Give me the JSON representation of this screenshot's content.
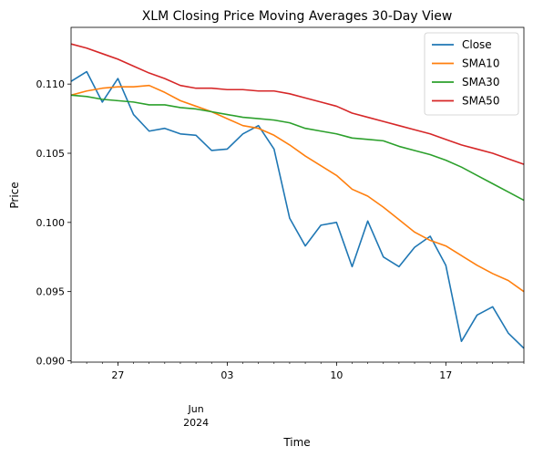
{
  "chart_data": {
    "type": "line",
    "title": "XLM Closing Price Moving Averages 30-Day View",
    "xlabel": "Time",
    "ylabel": "Price",
    "x": [
      "2024-05-24",
      "2024-05-25",
      "2024-05-26",
      "2024-05-27",
      "2024-05-28",
      "2024-05-29",
      "2024-05-30",
      "2024-05-31",
      "2024-06-01",
      "2024-06-02",
      "2024-06-03",
      "2024-06-04",
      "2024-06-05",
      "2024-06-06",
      "2024-06-07",
      "2024-06-08",
      "2024-06-09",
      "2024-06-10",
      "2024-06-11",
      "2024-06-12",
      "2024-06-13",
      "2024-06-14",
      "2024-06-15",
      "2024-06-16",
      "2024-06-17",
      "2024-06-18",
      "2024-06-19",
      "2024-06-20",
      "2024-06-21",
      "2024-06-22"
    ],
    "xlim": [
      "2024-05-24",
      "2024-06-22"
    ],
    "ylim": [
      0.0899,
      0.1141
    ],
    "yticks": [
      0.09,
      0.095,
      0.1,
      0.105,
      0.11
    ],
    "ytick_labels": [
      "0.090",
      "0.095",
      "0.100",
      "0.105",
      "0.110"
    ],
    "xticks": [
      {
        "date": "2024-05-27",
        "label": "27"
      },
      {
        "date": "2024-06-03",
        "label": "03"
      },
      {
        "date": "2024-06-10",
        "label": "10"
      },
      {
        "date": "2024-06-17",
        "label": "17"
      }
    ],
    "xtick_secondary": {
      "date": "2024-06-01",
      "label": "Jun",
      "sublabel": "2024"
    },
    "grid": false,
    "legend": "top-right",
    "series": [
      {
        "name": "Close",
        "color": "#1f77b4",
        "values": [
          0.1102,
          0.1109,
          0.1087,
          0.1104,
          0.1078,
          0.1066,
          0.1068,
          0.1064,
          0.1063,
          0.1052,
          0.1053,
          0.1064,
          0.107,
          0.1053,
          0.1003,
          0.0983,
          0.0998,
          0.1,
          0.0968,
          0.1001,
          0.0975,
          0.0968,
          0.0982,
          0.099,
          0.0969,
          0.0914,
          0.0933,
          0.0939,
          0.092,
          0.0909
        ]
      },
      {
        "name": "SMA10",
        "color": "#ff7f0e",
        "values": [
          0.1092,
          0.1095,
          0.1097,
          0.1098,
          0.1098,
          0.1099,
          0.1094,
          0.1088,
          0.1084,
          0.108,
          0.1075,
          0.107,
          0.1068,
          0.1063,
          0.1056,
          0.1048,
          0.1041,
          0.1034,
          0.1024,
          0.1019,
          0.1011,
          0.1002,
          0.0993,
          0.0987,
          0.0983,
          0.0976,
          0.0969,
          0.0963,
          0.0958,
          0.095
        ]
      },
      {
        "name": "SMA30",
        "color": "#2ca02c",
        "values": [
          0.1092,
          0.1091,
          0.1089,
          0.1088,
          0.1087,
          0.1085,
          0.1085,
          0.1083,
          0.1082,
          0.108,
          0.1078,
          0.1076,
          0.1075,
          0.1074,
          0.1072,
          0.1068,
          0.1066,
          0.1064,
          0.1061,
          0.106,
          0.1059,
          0.1055,
          0.1052,
          0.1049,
          0.1045,
          0.104,
          0.1034,
          0.1028,
          0.1022,
          0.1016
        ]
      },
      {
        "name": "SMA50",
        "color": "#d62728",
        "values": [
          0.1129,
          0.1126,
          0.1122,
          0.1118,
          0.1113,
          0.1108,
          0.1104,
          0.1099,
          0.1097,
          0.1097,
          0.1096,
          0.1096,
          0.1095,
          0.1095,
          0.1093,
          0.109,
          0.1087,
          0.1084,
          0.1079,
          0.1076,
          0.1073,
          0.107,
          0.1067,
          0.1064,
          0.106,
          0.1056,
          0.1053,
          0.105,
          0.1046,
          0.1042
        ]
      }
    ]
  }
}
